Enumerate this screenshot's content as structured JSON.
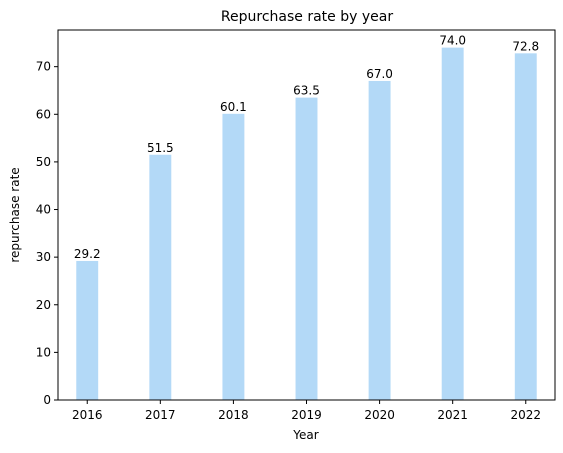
{
  "chart_data": {
    "type": "bar",
    "title": "Repurchase rate by year",
    "xlabel": "Year",
    "ylabel": "repurchase rate",
    "categories": [
      "2016",
      "2017",
      "2018",
      "2019",
      "2020",
      "2021",
      "2022"
    ],
    "values": [
      29.2,
      51.5,
      60.1,
      63.5,
      67.0,
      74.0,
      72.8
    ],
    "value_labels": [
      "29.2",
      "51.5",
      "60.1",
      "63.5",
      "67.0",
      "74.0",
      "72.8"
    ],
    "ylim": [
      0,
      77.7
    ],
    "yticks": [
      0,
      10,
      20,
      30,
      40,
      50,
      60,
      70
    ],
    "grid": false,
    "bar_color": "#b3d9f7"
  }
}
